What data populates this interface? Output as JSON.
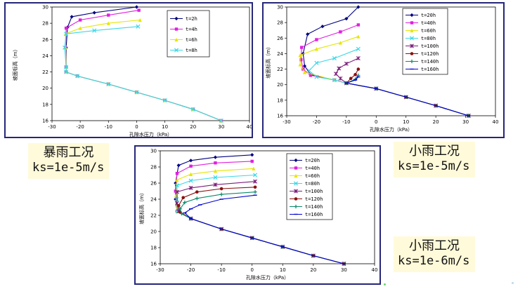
{
  "conditions": {
    "panel1": {
      "name": "暴雨工况",
      "ks": "ks=1e-5m/s"
    },
    "panel2": {
      "name": "小雨工况",
      "ks": "ks=1e-5m/s"
    },
    "panel3": {
      "name": "小雨工况",
      "ks": "ks=1e-6m/s"
    }
  },
  "chart_data": [
    {
      "type": "line",
      "xlabel": "孔隙水压力（kPa）",
      "ylabel": "坡面标高（m）",
      "xlim": [
        -30,
        40
      ],
      "ylim": [
        16,
        30
      ],
      "xticks": [
        "-30",
        "-20",
        "-10",
        "0",
        "10",
        "20",
        "30",
        "40"
      ],
      "yticks": [
        "16",
        "18",
        "20",
        "22",
        "24",
        "26",
        "28",
        "30"
      ],
      "legend_position": "top-right",
      "common_tail": [
        [
          -25,
          22
        ],
        [
          -21,
          21.5
        ],
        [
          -10,
          20.5
        ],
        [
          0,
          19.5
        ],
        [
          10,
          18.5
        ],
        [
          20,
          17.4
        ],
        [
          30,
          16
        ]
      ],
      "series": [
        {
          "name": "t=2h",
          "color": "#000080",
          "marker": "diamond",
          "points": [
            [
              0,
              30
            ],
            [
              -15,
              29.3
            ],
            [
              -23,
              28.8
            ],
            [
              -24.5,
              27.5
            ],
            [
              -25,
              25
            ],
            [
              -25,
              22.6
            ]
          ]
        },
        {
          "name": "t=4h",
          "color": "#e020e0",
          "marker": "square",
          "points": [
            [
              0.8,
              29.6
            ],
            [
              -10,
              29
            ],
            [
              -20,
              28.4
            ],
            [
              -25,
              27.4
            ],
            [
              -25.2,
              25
            ],
            [
              -25,
              22.6
            ]
          ]
        },
        {
          "name": "t=6h",
          "color": "#e6e600",
          "marker": "triangle",
          "points": [
            [
              1.2,
              28.4
            ],
            [
              -10,
              28
            ],
            [
              -20,
              27.4
            ],
            [
              -25.2,
              26.7
            ],
            [
              -25.2,
              25
            ],
            [
              -25,
              22.6
            ]
          ]
        },
        {
          "name": "t=8h",
          "color": "#3ad8e8",
          "marker": "x",
          "points": [
            [
              0.5,
              27.6
            ],
            [
              -15,
              27.1
            ],
            [
              -25,
              26.7
            ],
            [
              -25.5,
              25
            ],
            [
              -25,
              22.6
            ]
          ]
        }
      ]
    },
    {
      "type": "line",
      "xlabel": "孔隙水压力（kPa）",
      "ylabel": "坡面标高（m）",
      "xlim": [
        -30,
        40
      ],
      "ylim": [
        16,
        30
      ],
      "xticks": [
        "-30",
        "-20",
        "-10",
        "0",
        "10",
        "20",
        "30",
        "40"
      ],
      "yticks": [
        "16",
        "18",
        "20",
        "22",
        "24",
        "26",
        "28",
        "30"
      ],
      "legend_position": "top-right",
      "common_tail": [
        [
          -10,
          20.2
        ],
        [
          0,
          19.5
        ],
        [
          10,
          18.4
        ],
        [
          20,
          17.3
        ],
        [
          31,
          16
        ]
      ],
      "series": [
        {
          "name": "t=20h",
          "color": "#000080",
          "marker": "diamond",
          "points": [
            [
              -6,
              30
            ],
            [
              -10,
              28.5
            ],
            [
              -18,
              27.5
            ],
            [
              -23,
              26.5
            ],
            [
              -24.5,
              24
            ],
            [
              -24,
              22.4
            ],
            [
              -22,
              21.3
            ],
            [
              -14,
              20.6
            ]
          ]
        },
        {
          "name": "t=40h",
          "color": "#e020e0",
          "marker": "square",
          "points": [
            [
              -6,
              27.7
            ],
            [
              -12,
              26.8
            ],
            [
              -20,
              25.8
            ],
            [
              -25,
              24.8
            ],
            [
              -25.2,
              23.2
            ],
            [
              -24.5,
              22
            ],
            [
              -22,
              21.2
            ],
            [
              -14,
              20.6
            ]
          ]
        },
        {
          "name": "t=60h",
          "color": "#e6e600",
          "marker": "triangle",
          "points": [
            [
              -6,
              26.2
            ],
            [
              -12,
              25.4
            ],
            [
              -20,
              24.6
            ],
            [
              -25.5,
              23.8
            ],
            [
              -25.5,
              22.6
            ],
            [
              -24,
              21.6
            ],
            [
              -14,
              20.6
            ]
          ]
        },
        {
          "name": "t=80h",
          "color": "#3ad8e8",
          "marker": "x",
          "points": [
            [
              -6,
              24.6
            ],
            [
              -14,
              23.4
            ],
            [
              -20,
              22.8
            ],
            [
              -22.5,
              21.8
            ],
            [
              -20,
              21
            ],
            [
              -14,
              20.6
            ]
          ]
        },
        {
          "name": "t=100h",
          "color": "#7a1e7a",
          "marker": "star",
          "points": [
            [
              -6,
              23.4
            ],
            [
              -10,
              22.7
            ],
            [
              -12.5,
              22.1
            ],
            [
              -13.5,
              21.4
            ],
            [
              -12,
              20.8
            ]
          ]
        },
        {
          "name": "t=120h",
          "color": "#8b1010",
          "marker": "circle",
          "points": [
            [
              -6,
              22
            ],
            [
              -7,
              21.3
            ],
            [
              -8.5,
              20.8
            ]
          ]
        },
        {
          "name": "t=140h",
          "color": "#0a8a6a",
          "marker": "plus",
          "points": [
            [
              -6,
              21.2
            ],
            [
              -7,
              20.7
            ]
          ]
        },
        {
          "name": "t=160h",
          "color": "#0000d0",
          "marker": "dash",
          "points": [
            [
              -6,
              21
            ],
            [
              -7,
              20.6
            ]
          ]
        }
      ]
    },
    {
      "type": "line",
      "xlabel": "孔隙水压力（kPa）",
      "ylabel": "坡面标高（m）",
      "xlim": [
        -30,
        40
      ],
      "ylim": [
        16,
        30
      ],
      "xticks": [
        "-30",
        "-20",
        "-10",
        "0",
        "10",
        "20",
        "30",
        "40"
      ],
      "yticks": [
        "16",
        "18",
        "20",
        "22",
        "24",
        "26",
        "28",
        "30"
      ],
      "legend_position": "top-right",
      "common_tail": [
        [
          -20,
          21.6
        ],
        [
          -10,
          20.3
        ],
        [
          0,
          19.2
        ],
        [
          10,
          18.1
        ],
        [
          20,
          17
        ],
        [
          30,
          16
        ]
      ],
      "series": [
        {
          "name": "t=20h",
          "color": "#000080",
          "marker": "diamond",
          "points": [
            [
              0,
              29.5
            ],
            [
              -12,
              29.2
            ],
            [
              -20,
              28.8
            ],
            [
              -24,
              28.2
            ],
            [
              -25,
              26
            ],
            [
              -25,
              24
            ],
            [
              -24.5,
              22.5
            ]
          ]
        },
        {
          "name": "t=40h",
          "color": "#e020e0",
          "marker": "square",
          "points": [
            [
              0,
              28.7
            ],
            [
              -12,
              28.5
            ],
            [
              -20,
              28.1
            ],
            [
              -24.5,
              27.2
            ],
            [
              -25,
              25
            ],
            [
              -24.5,
              22.5
            ]
          ]
        },
        {
          "name": "t=60h",
          "color": "#e6e600",
          "marker": "triangle",
          "points": [
            [
              0.5,
              27.8
            ],
            [
              -12,
              27.5
            ],
            [
              -20,
              27.1
            ],
            [
              -24.5,
              26.4
            ],
            [
              -24.8,
              24.5
            ],
            [
              -24.5,
              22.5
            ]
          ]
        },
        {
          "name": "t=80h",
          "color": "#3ad8e8",
          "marker": "x",
          "points": [
            [
              1,
              27
            ],
            [
              -12,
              26.7
            ],
            [
              -20,
              26.3
            ],
            [
              -24.5,
              25.7
            ],
            [
              -24.6,
              24
            ],
            [
              -24.3,
              22.5
            ]
          ]
        },
        {
          "name": "t=100h",
          "color": "#7a1e7a",
          "marker": "star",
          "points": [
            [
              1,
              26.2
            ],
            [
              -12,
              25.8
            ],
            [
              -20,
              25.4
            ],
            [
              -24.5,
              24.9
            ],
            [
              -24.5,
              23.5
            ],
            [
              -24,
              22.5
            ]
          ]
        },
        {
          "name": "t=120h",
          "color": "#8b1010",
          "marker": "circle",
          "points": [
            [
              1,
              25.5
            ],
            [
              -10,
              25.3
            ],
            [
              -18,
              24.9
            ],
            [
              -22.5,
              24.2
            ],
            [
              -24,
              23.2
            ],
            [
              -23.5,
              22.4
            ]
          ]
        },
        {
          "name": "t=140h",
          "color": "#0a8a6a",
          "marker": "plus",
          "points": [
            [
              1,
              24.9
            ],
            [
              -10,
              24.6
            ],
            [
              -18,
              24.1
            ],
            [
              -22,
              23.6
            ],
            [
              -23.5,
              22.8
            ],
            [
              -23,
              22.2
            ]
          ]
        },
        {
          "name": "t=160h",
          "color": "#0000d0",
          "marker": "dash",
          "points": [
            [
              1,
              24.5
            ],
            [
              -10,
              24
            ],
            [
              -17,
              23.3
            ],
            [
              -20,
              22.8
            ],
            [
              -22,
              22.3
            ]
          ]
        }
      ]
    }
  ]
}
